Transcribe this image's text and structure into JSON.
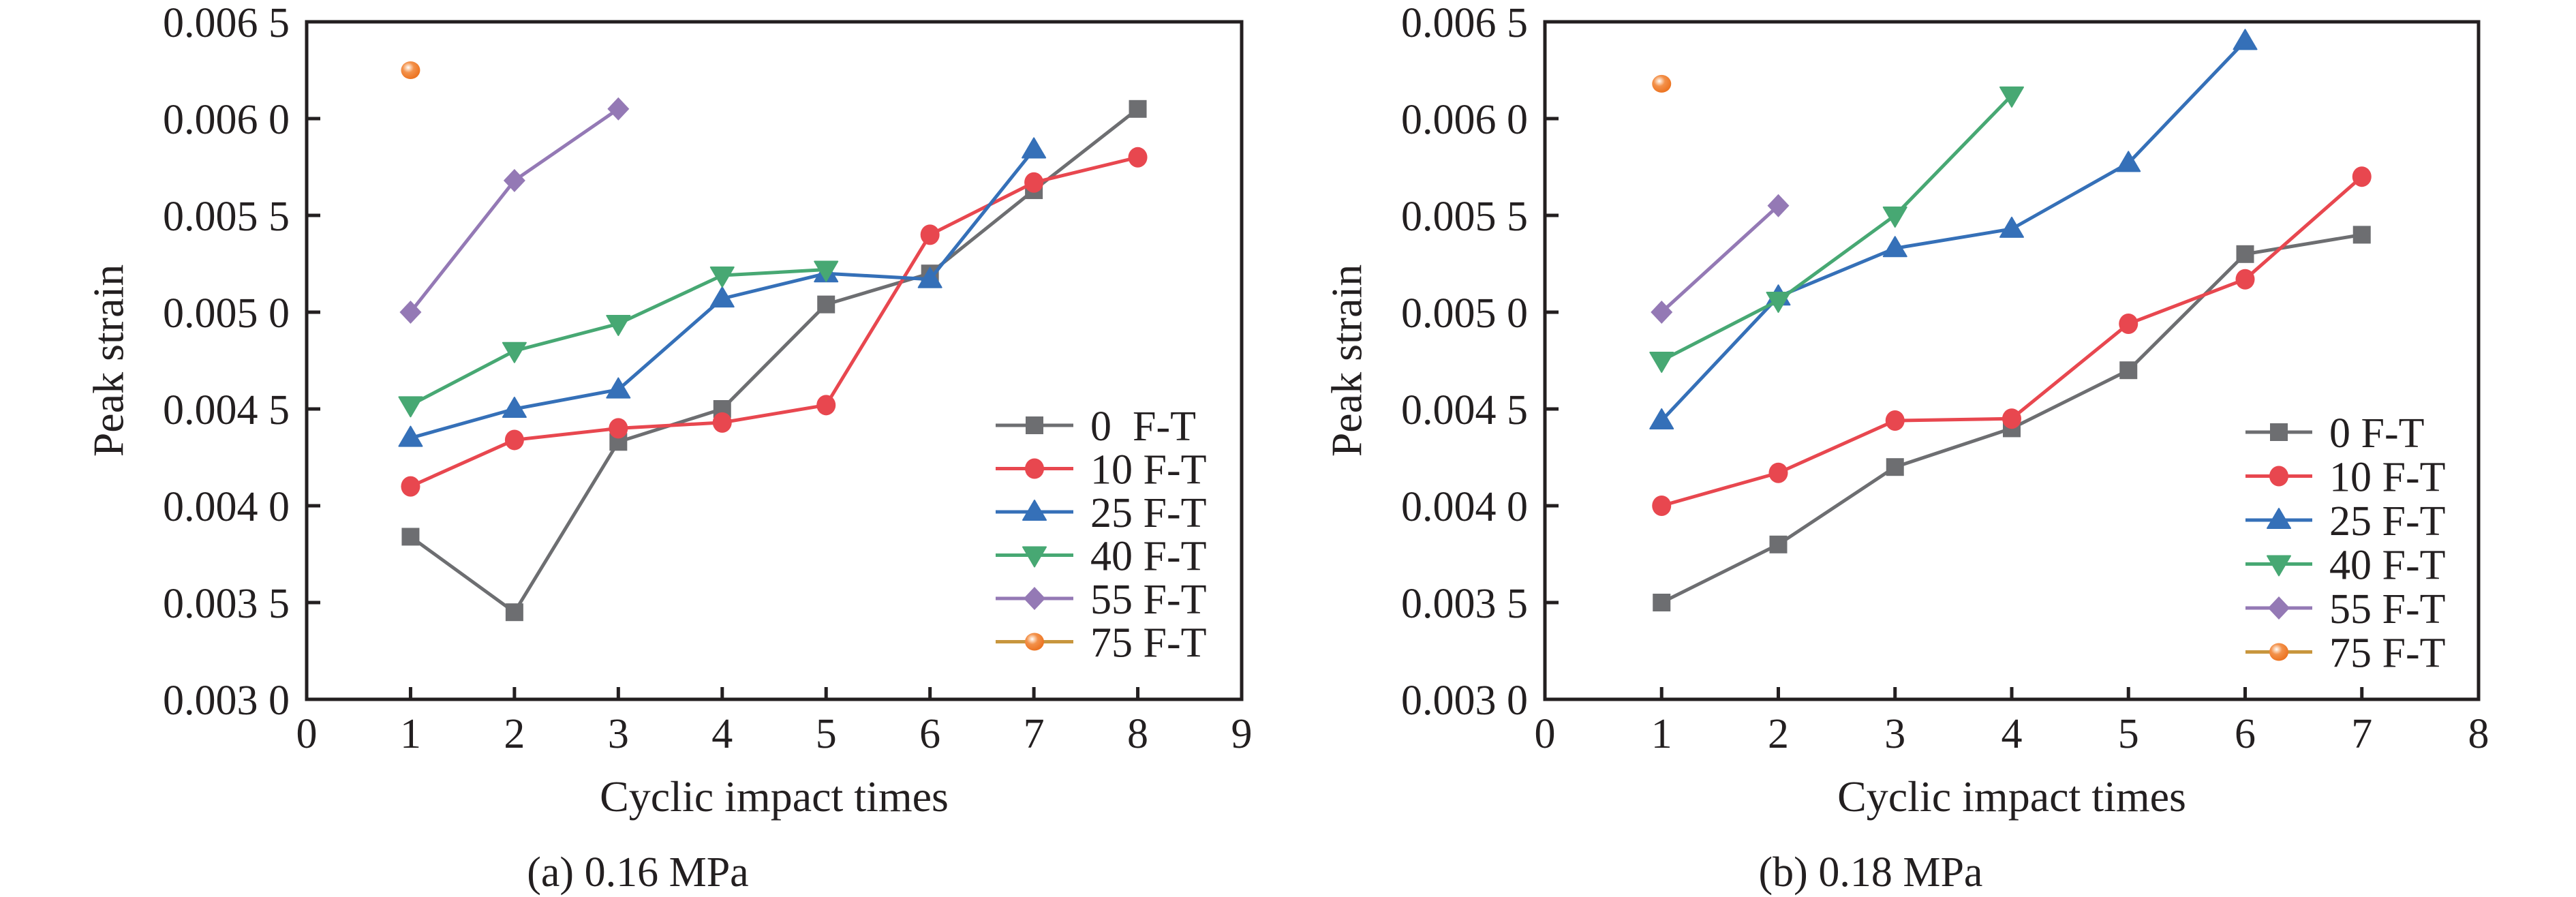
{
  "figure": {
    "series_styles": [
      {
        "name": "0 F-T",
        "color": "#6d6e71",
        "line_color": "#6d6e71",
        "marker": "square"
      },
      {
        "name": "10 F-T",
        "color": "#e8474f",
        "line_color": "#e8474f",
        "marker": "circle"
      },
      {
        "name": "25 F-T",
        "color": "#3570b8",
        "line_color": "#3570b8",
        "marker": "triangle-up"
      },
      {
        "name": "40 F-T",
        "color": "#47a873",
        "line_color": "#47a873",
        "marker": "triangle-down"
      },
      {
        "name": "55 F-T",
        "color": "#9479b5",
        "line_color": "#9479b5",
        "marker": "diamond"
      },
      {
        "name": "75 F-T",
        "color": "#f07d2b",
        "line_color": "#c8963e",
        "marker": "sphere"
      }
    ]
  },
  "chart_data": [
    {
      "type": "line",
      "caption": "(a) 0.16 MPa",
      "title": "",
      "xlabel": "Cyclic impact times",
      "ylabel": "Peak strain",
      "xlim": [
        0,
        9
      ],
      "ylim": [
        0.003,
        0.0065
      ],
      "xticks": [
        0,
        1,
        2,
        3,
        4,
        5,
        6,
        7,
        8,
        9
      ],
      "xtick_labels": [
        "0",
        "1",
        "2",
        "3",
        "4",
        "5",
        "6",
        "7",
        "8",
        "9"
      ],
      "yticks": [
        0.003,
        0.0035,
        0.004,
        0.0045,
        0.005,
        0.0055,
        0.006,
        0.0065
      ],
      "ytick_labels": [
        "0.003 0",
        "0.003 5",
        "0.004 0",
        "0.004 5",
        "0.005 0",
        "0.005 5",
        "0.006 0",
        "0.006 5"
      ],
      "grid": false,
      "legend_position": "bottom-right",
      "legend_labels": [
        "0  F-T",
        "10 F-T",
        "25 F-T",
        "40 F-T",
        "55 F-T",
        "75 F-T"
      ],
      "series": [
        {
          "name": "0 F-T",
          "x": [
            1,
            2,
            3,
            4,
            5,
            6,
            7,
            8
          ],
          "values": [
            0.00384,
            0.00345,
            0.00433,
            0.0045,
            0.00504,
            0.0052,
            0.00563,
            0.00605
          ]
        },
        {
          "name": "10 F-T",
          "x": [
            1,
            2,
            3,
            4,
            5,
            6,
            7,
            8
          ],
          "values": [
            0.0041,
            0.00434,
            0.0044,
            0.00443,
            0.00452,
            0.0054,
            0.00567,
            0.0058
          ]
        },
        {
          "name": "25 F-T",
          "x": [
            1,
            2,
            3,
            4,
            5,
            6,
            7
          ],
          "values": [
            0.00435,
            0.0045,
            0.0046,
            0.00507,
            0.0052,
            0.00517,
            0.00584
          ]
        },
        {
          "name": "40 F-T",
          "x": [
            1,
            2,
            3,
            4,
            5
          ],
          "values": [
            0.00452,
            0.0048,
            0.00494,
            0.00519,
            0.00522
          ]
        },
        {
          "name": "55 F-T",
          "x": [
            1,
            2,
            3
          ],
          "values": [
            0.005,
            0.00568,
            0.00605
          ]
        },
        {
          "name": "75 F-T",
          "x": [
            1
          ],
          "values": [
            0.00625
          ]
        }
      ]
    },
    {
      "type": "line",
      "caption": "(b) 0.18 MPa",
      "title": "",
      "xlabel": "Cyclic impact times",
      "ylabel": "Peak strain",
      "xlim": [
        0,
        8
      ],
      "ylim": [
        0.003,
        0.0065
      ],
      "xticks": [
        0,
        1,
        2,
        3,
        4,
        5,
        6,
        7,
        8
      ],
      "xtick_labels": [
        "0",
        "1",
        "2",
        "3",
        "4",
        "5",
        "6",
        "7",
        "8"
      ],
      "yticks": [
        0.003,
        0.0035,
        0.004,
        0.0045,
        0.005,
        0.0055,
        0.006,
        0.0065
      ],
      "ytick_labels": [
        "0.003 0",
        "0.003 5",
        "0.004 0",
        "0.004 5",
        "0.005 0",
        "0.005 5",
        "0.006 0",
        "0.006 5"
      ],
      "grid": false,
      "legend_position": "bottom-right",
      "legend_labels": [
        "0 F-T",
        "10 F-T",
        "25 F-T",
        "40 F-T",
        "55 F-T",
        "75 F-T"
      ],
      "series": [
        {
          "name": "0 F-T",
          "x": [
            1,
            2,
            3,
            4,
            5,
            6,
            7
          ],
          "values": [
            0.0035,
            0.0038,
            0.0042,
            0.0044,
            0.0047,
            0.0053,
            0.0054
          ]
        },
        {
          "name": "10 F-T",
          "x": [
            1,
            2,
            3,
            4,
            5,
            6,
            7
          ],
          "values": [
            0.004,
            0.00417,
            0.00444,
            0.00445,
            0.00494,
            0.00517,
            0.0057
          ]
        },
        {
          "name": "25 F-T",
          "x": [
            1,
            2,
            3,
            4,
            5,
            6
          ],
          "values": [
            0.00444,
            0.00508,
            0.00533,
            0.00543,
            0.00577,
            0.0064
          ]
        },
        {
          "name": "40 F-T",
          "x": [
            1,
            2,
            3,
            4
          ],
          "values": [
            0.00475,
            0.00506,
            0.0055,
            0.00612
          ]
        },
        {
          "name": "55 F-T",
          "x": [
            1,
            2
          ],
          "values": [
            0.005,
            0.00555
          ]
        },
        {
          "name": "75 F-T",
          "x": [
            1
          ],
          "values": [
            0.00618
          ]
        }
      ]
    }
  ]
}
